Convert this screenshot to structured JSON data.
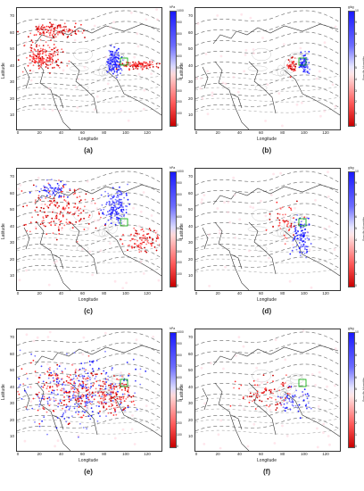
{
  "axis_labels": {
    "x": "Longitude",
    "y": "Latitude"
  },
  "x_ticks": [
    "0",
    "20",
    "40",
    "60",
    "80",
    "100",
    "120"
  ],
  "y_ticks": [
    "70",
    "60",
    "50",
    "40",
    "30",
    "20",
    "10"
  ],
  "colorbar_pressure": {
    "unit": "hPa",
    "ticks": [
      "1000",
      "900",
      "800",
      "700",
      "600",
      "500",
      "400",
      "300",
      "200",
      "100",
      "0"
    ]
  },
  "colorbar_humidity": {
    "unit": "g/kg",
    "side_label": "Specific Humidity",
    "ticks": [
      "10",
      "9",
      "8",
      "7",
      "6",
      "5",
      "4",
      "3",
      "2",
      "1",
      "0"
    ]
  },
  "panels": [
    {
      "caption": "(a)",
      "colorbar": "pressure"
    },
    {
      "caption": "(b)",
      "colorbar": "humidity"
    },
    {
      "caption": "(c)",
      "colorbar": "pressure"
    },
    {
      "caption": "(d)",
      "colorbar": "humidity"
    },
    {
      "caption": "(e)",
      "colorbar": "pressure"
    },
    {
      "caption": "(f)",
      "colorbar": "humidity"
    }
  ],
  "colors": {
    "high": "#1a1aff",
    "low": "#c80000",
    "site_marker": "#00aa00"
  }
}
